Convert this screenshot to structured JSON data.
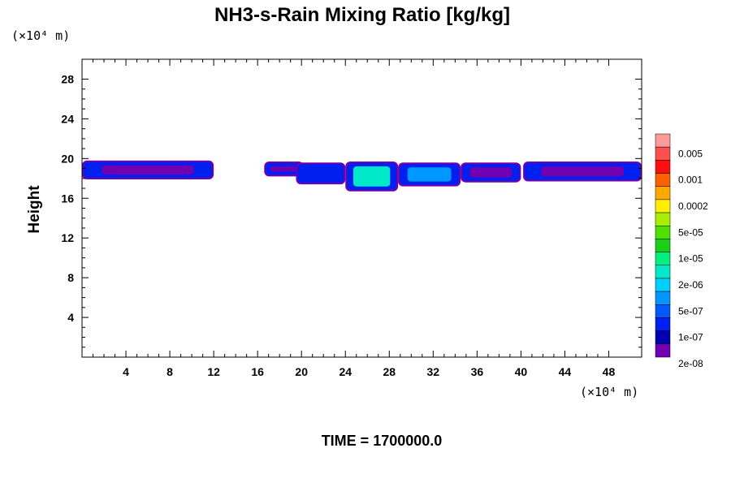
{
  "chart_data": {
    "type": "heatmap",
    "title": "NH3-s-Rain Mixing Ratio [kg/kg]",
    "ylabel": "Height",
    "y_unit": "(×10⁴ m)",
    "x_unit": "(×10⁴ m)",
    "time_label": "TIME = 1700000.0",
    "xlim": [
      0,
      51
    ],
    "ylim": [
      0,
      30
    ],
    "xticks": [
      "4",
      "8",
      "12",
      "16",
      "20",
      "24",
      "28",
      "32",
      "36",
      "40",
      "44",
      "48"
    ],
    "yticks": [
      "4",
      "8",
      "12",
      "16",
      "20",
      "24",
      "28"
    ],
    "colorbar": {
      "labels": [
        "0.005",
        "0.001",
        "0.0002",
        "5e-05",
        "1e-05",
        "2e-06",
        "5e-07",
        "1e-07",
        "2e-08"
      ],
      "colors": [
        "#ff9a9a",
        "#ff5050",
        "#ff1010",
        "#ff6000",
        "#ffa800",
        "#ffee00",
        "#a8f000",
        "#50e000",
        "#18d018",
        "#00f080",
        "#00e8c8",
        "#00d0ff",
        "#0098ff",
        "#0058ff",
        "#0020f0",
        "#0000b0",
        "#7000b0"
      ]
    },
    "regions": [
      {
        "x0": 0,
        "x1": 12,
        "y0": 17.9,
        "y1": 19.8,
        "level": "1e-07"
      },
      {
        "x0": 16.6,
        "x1": 20.2,
        "y0": 18.2,
        "y1": 19.7,
        "level": "1e-07"
      },
      {
        "x0": 19.5,
        "x1": 24,
        "y0": 17.4,
        "y1": 19.6,
        "level": "5e-07"
      },
      {
        "x0": 24,
        "x1": 28.8,
        "y0": 16.7,
        "y1": 19.7,
        "level": "1e-05"
      },
      {
        "x0": 28.8,
        "x1": 34.5,
        "y0": 17.2,
        "y1": 19.6,
        "level": "2e-06"
      },
      {
        "x0": 34.5,
        "x1": 40,
        "y0": 17.6,
        "y1": 19.6,
        "level": "1e-07"
      },
      {
        "x0": 40.2,
        "x1": 51,
        "y0": 17.7,
        "y1": 19.7,
        "level": "1e-07"
      }
    ]
  }
}
